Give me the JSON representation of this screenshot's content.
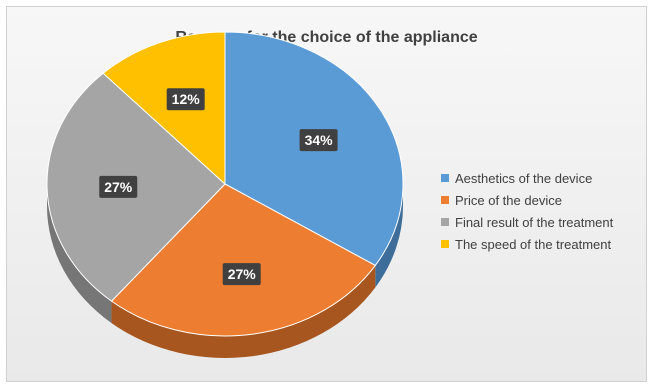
{
  "chart_data": {
    "type": "pie",
    "title": "Reasons for the choice of the appliance",
    "categories": [
      "Aesthetics of the device",
      "Price of the device",
      "Final result of the treatment",
      "The speed of the treatment"
    ],
    "values": [
      34,
      27,
      27,
      12
    ],
    "labels": [
      "34%",
      "27%",
      "27%",
      "12%"
    ],
    "colors": [
      "#5b9bd5",
      "#ed7d31",
      "#a5a5a5",
      "#ffc000"
    ],
    "side_colors": [
      "#3d6d98",
      "#a8561f",
      "#767676",
      "#b88a00"
    ],
    "legend_position": "right",
    "style": "3d"
  }
}
